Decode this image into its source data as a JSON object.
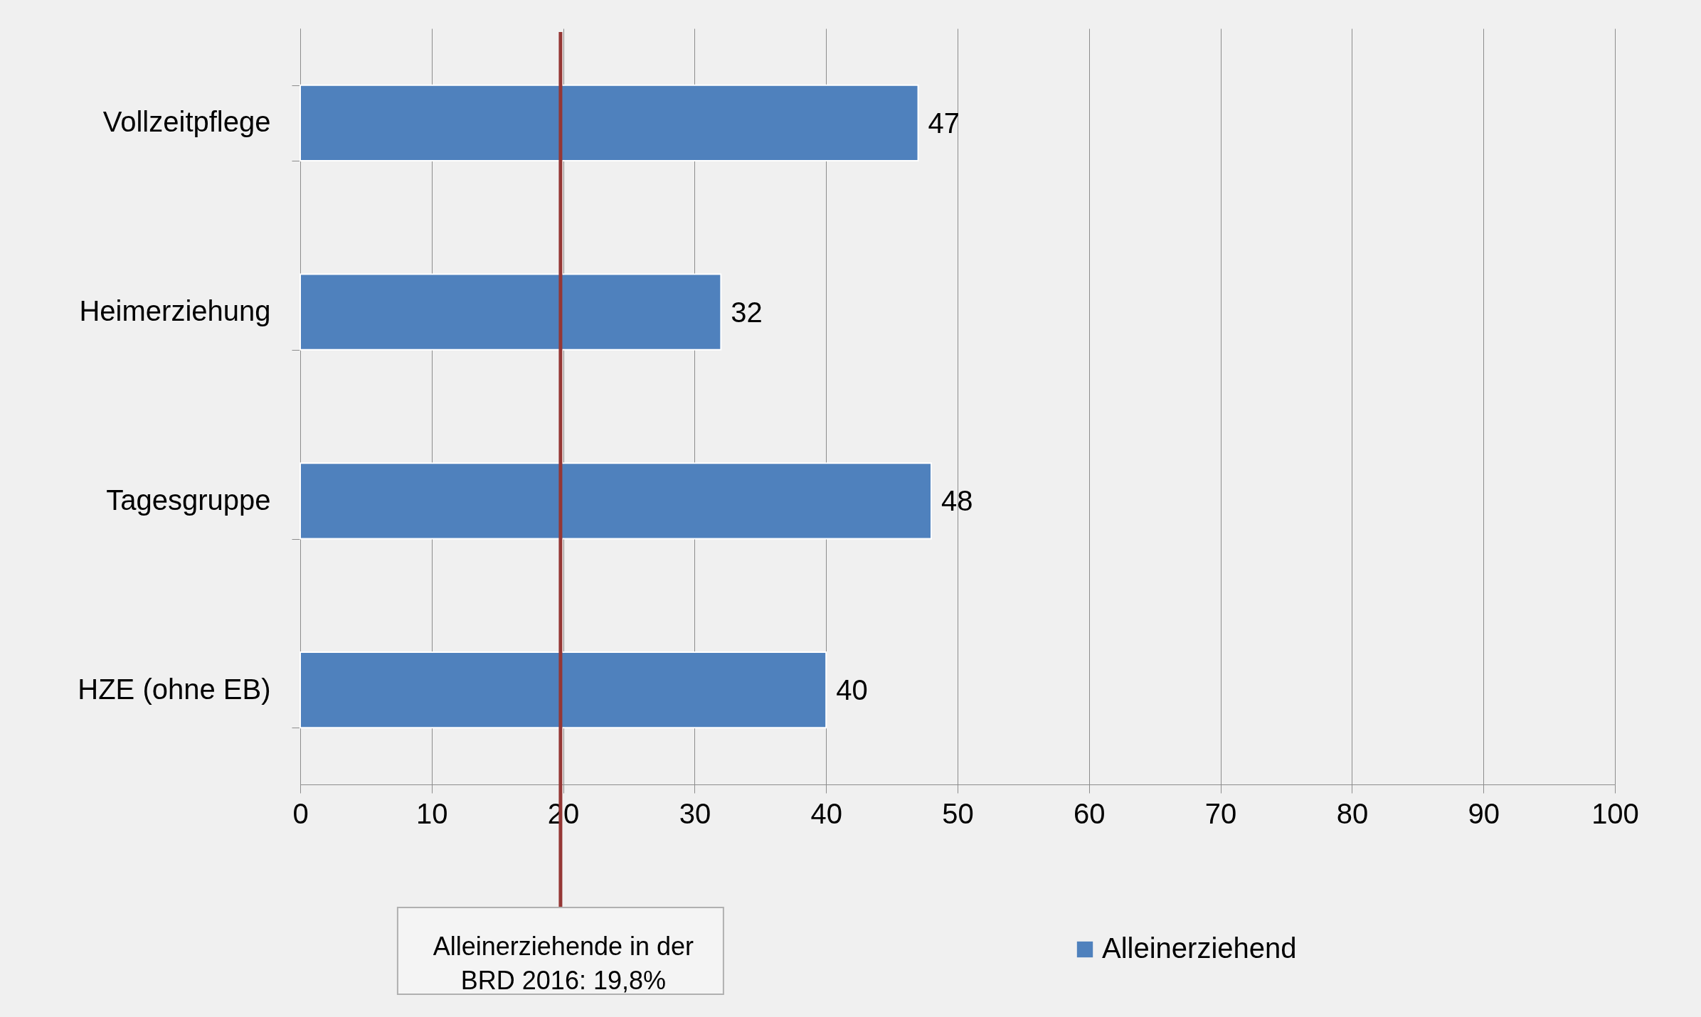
{
  "chart_data": {
    "type": "bar",
    "orientation": "horizontal",
    "categories": [
      "Vollzeitpflege",
      "Heimerziehung",
      "Tagesgruppe",
      "HZE (ohne EB)"
    ],
    "series": [
      {
        "name": "Alleinerziehend",
        "color": "#4f81bd",
        "values": [
          47,
          32,
          48,
          40
        ]
      }
    ],
    "xlim": [
      0,
      100
    ],
    "xticks": [
      0,
      10,
      20,
      30,
      40,
      50,
      60,
      70,
      80,
      90,
      100
    ],
    "grid": "x",
    "legend": "bottom",
    "data_labels": true,
    "ref_lines": [
      {
        "axis": "x",
        "value": 19.8,
        "label": "Alleinerziehende in der\nBRD 2016: 19,8%",
        "color": "#953735"
      }
    ]
  }
}
